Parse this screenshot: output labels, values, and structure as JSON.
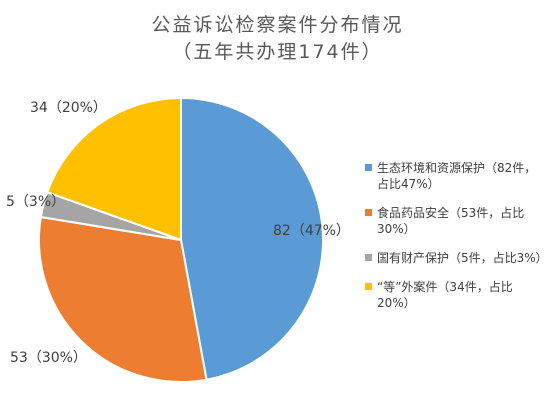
{
  "chart_data": {
    "type": "pie",
    "title": "公益诉讼检察案件分布情况",
    "subtitle": "（五年共办理174件）",
    "slices": [
      {
        "label": "生态环境和资源保护",
        "value": 82,
        "percent": 47,
        "data_label": "82（47%）",
        "legend": "生态环境和资源保护（82件，占比47%）",
        "color": "#5B9BD5"
      },
      {
        "label": "食品药品安全",
        "value": 53,
        "percent": 30,
        "data_label": "53（30%）",
        "legend": "食品药品安全（53件，占比30%）",
        "color": "#ED7D31"
      },
      {
        "label": "国有财产保护",
        "value": 5,
        "percent": 3,
        "data_label": "5（3%）",
        "legend": "国有财产保护（5件，占比3%）",
        "color": "#A5A5A5"
      },
      {
        "label": "“等”外案件",
        "value": 34,
        "percent": 20,
        "data_label": "34（20%）",
        "legend": "“等”外案件（34件，占比20%）",
        "color": "#FFC000"
      }
    ],
    "legend_position": "right"
  }
}
